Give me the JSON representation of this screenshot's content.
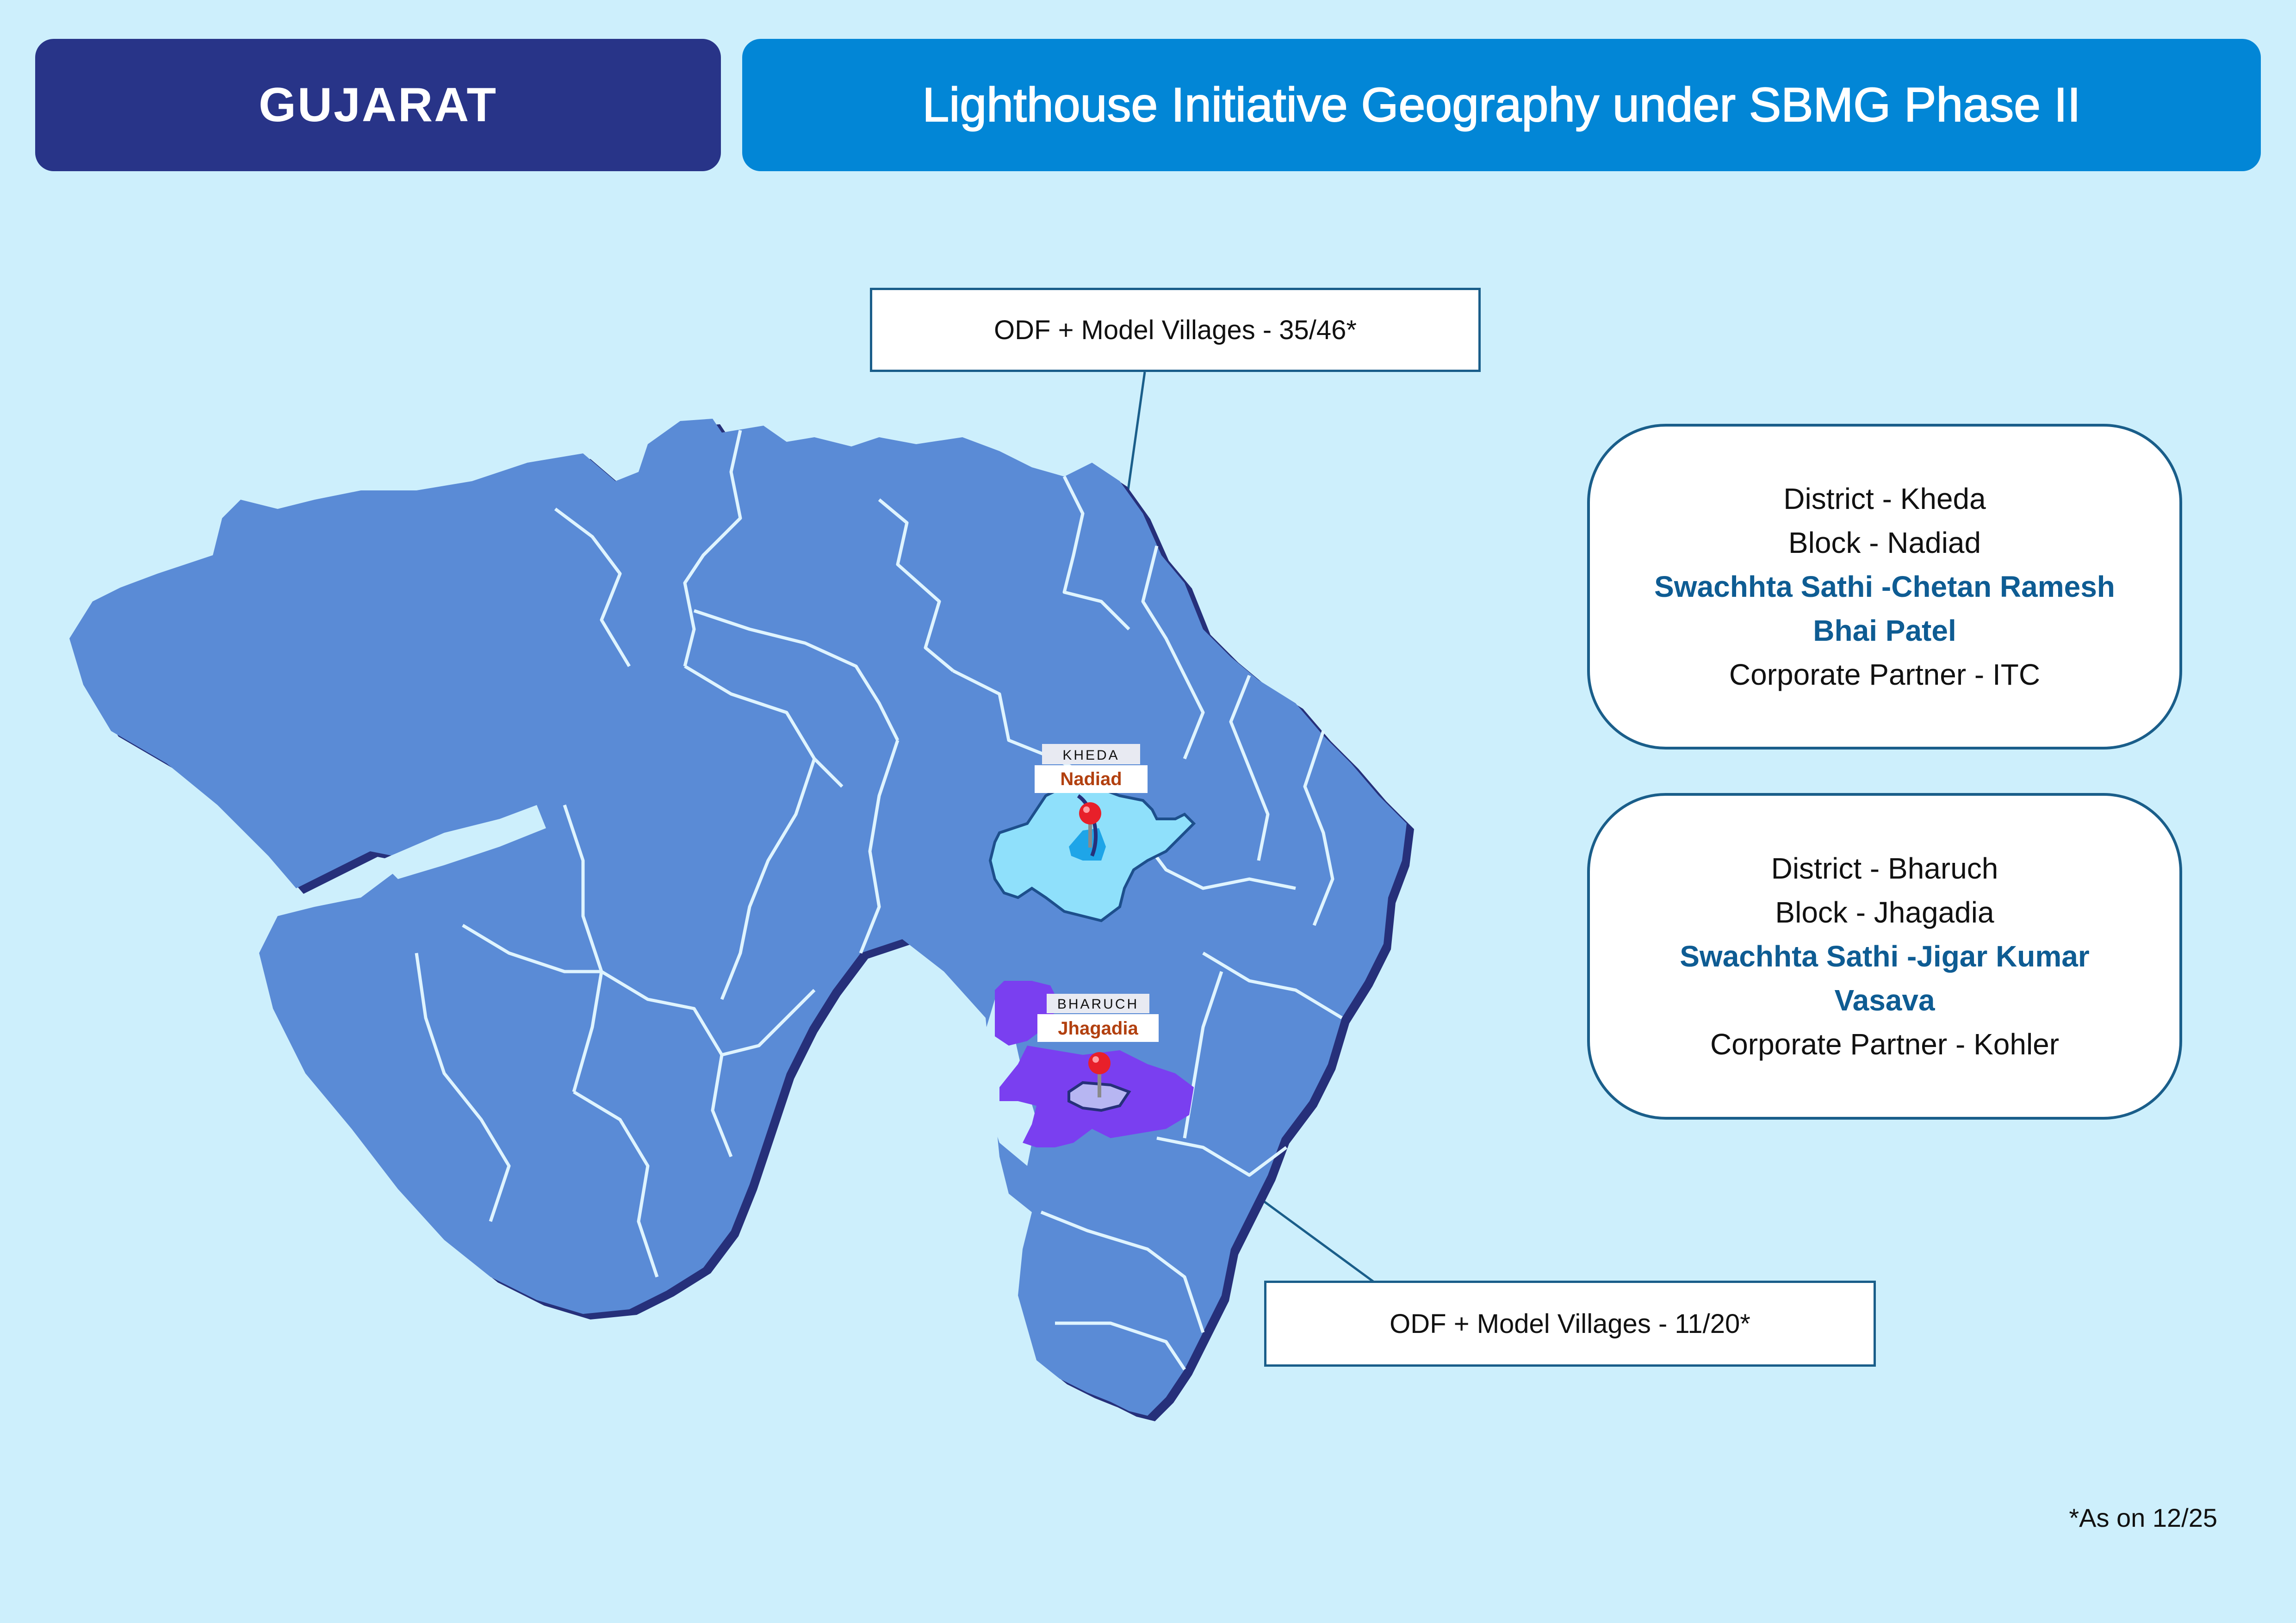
{
  "header": {
    "state": "GUJARAT",
    "title": "Lighthouse Initiative Geography under SBMG Phase II"
  },
  "callouts": {
    "kheda_odf": "ODF + Model Villages - 35/46*",
    "bharuch_odf": "ODF + Model Villages - 11/20*"
  },
  "kheda": {
    "district": "District - Kheda",
    "block": "Block - Nadiad",
    "sathi": "Swachhta Sathi -Chetan Ramesh Bhai Patel",
    "partner": "Corporate Partner - ITC",
    "map_district_label": "KHEDA",
    "map_block_label": "Nadiad"
  },
  "bharuch": {
    "district": "District - Bharuch",
    "block": "Block - Jhagadia",
    "sathi": "Swachhta Sathi -Jigar Kumar Vasava",
    "partner": "Corporate Partner - Kohler",
    "map_district_label": "BHARUCH",
    "map_block_label": "Jhagadia"
  },
  "footnote": "*As on 12/25",
  "colors": {
    "state_header": "#283488",
    "title_header": "#0286d6",
    "map_fill": "#5a8bd6",
    "map_shadow": "#26307a",
    "kheda_highlight": "#8fe0fb",
    "bharuch_highlight": "#7a3ff0",
    "sathi_text": "#0e5c93",
    "background": "#cdeffc"
  },
  "icons": [
    "map-pin-icon"
  ]
}
